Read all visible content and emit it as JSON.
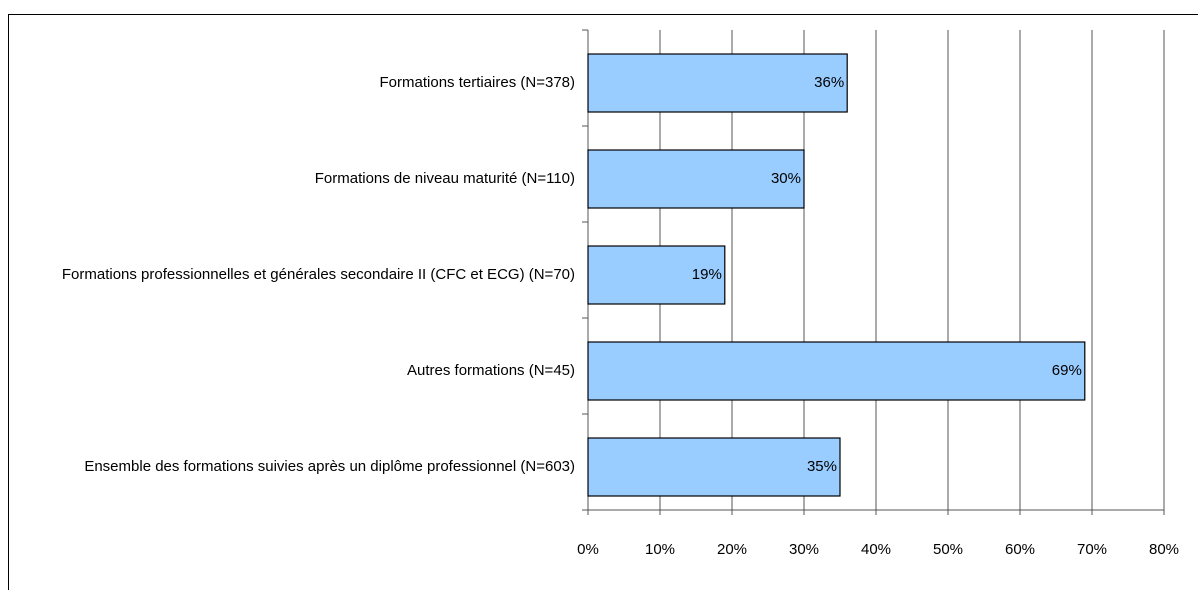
{
  "chart_data": {
    "type": "bar",
    "orientation": "horizontal",
    "categories": [
      "Formations tertiaires (N=378)",
      "Formations de niveau maturité (N=110)",
      "Formations professionnelles et générales secondaire II (CFC et ECG) (N=70)",
      "Autres formations (N=45)",
      "Ensemble des formations suivies après un diplôme professionnel (N=603)"
    ],
    "values": [
      36,
      30,
      19,
      69,
      35
    ],
    "value_labels": [
      "36%",
      "30%",
      "19%",
      "69%",
      "35%"
    ],
    "color": "#99ccff",
    "xlim": [
      0,
      80
    ],
    "xticks": [
      {
        "value": 0,
        "label": "0%"
      },
      {
        "value": 10,
        "label": "10%"
      },
      {
        "value": 20,
        "label": "20%"
      },
      {
        "value": 30,
        "label": "30%"
      },
      {
        "value": 40,
        "label": "40%"
      },
      {
        "value": 50,
        "label": "50%"
      },
      {
        "value": 60,
        "label": "60%"
      },
      {
        "value": 70,
        "label": "70%"
      },
      {
        "value": 80,
        "label": "80%"
      }
    ],
    "grid": true
  }
}
